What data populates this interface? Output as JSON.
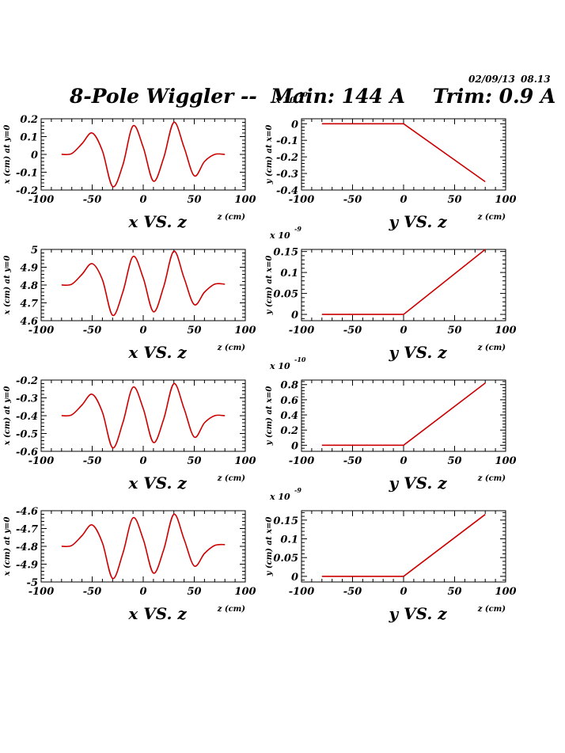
{
  "header": {
    "date": "02/09/13",
    "time": "08.13",
    "title": "8-Pole Wiggler --  Main: 144 A    Trim: 0.9 A",
    "overlap_label": "x 10",
    "overlap_exponent": "-10"
  },
  "chart_data": [
    {
      "type": "line",
      "title": "x VS. z",
      "xlabel": "z (cm)",
      "ylabel": "x (cm) at y=0",
      "xlim": [
        -100,
        100
      ],
      "ylim": [
        -0.2,
        0.2
      ],
      "x_ticks": [
        "-100",
        "-50",
        "0",
        "50",
        "100"
      ],
      "y_ticks": [
        "0.2",
        "0.1",
        "0",
        "-0.1",
        "-0.2"
      ],
      "color": "#cc0000",
      "series": [
        {
          "x": [
            -80,
            -70,
            -60,
            -50,
            -40,
            -30,
            -20,
            -10,
            0,
            10,
            20,
            30,
            40,
            50,
            60,
            70,
            80
          ],
          "y": [
            0,
            0.005,
            0.06,
            0.12,
            0.02,
            -0.18,
            -0.06,
            0.16,
            0.04,
            -0.15,
            -0.02,
            0.18,
            0.04,
            -0.12,
            -0.04,
            0,
            0
          ]
        }
      ]
    },
    {
      "type": "line",
      "title": "y VS. z",
      "xlabel": "z (cm)",
      "ylabel": "y (cm) at x=0",
      "exponent": "",
      "xlim": [
        -100,
        100
      ],
      "ylim": [
        -0.4,
        0.03
      ],
      "x_ticks": [
        "-100",
        "-50",
        "0",
        "50",
        "100"
      ],
      "y_ticks": [
        "0",
        "-0.1",
        "-0.2",
        "-0.3",
        "-0.4"
      ],
      "color": "#cc0000",
      "series": [
        {
          "x": [
            -80,
            0,
            80
          ],
          "y": [
            0,
            0,
            -0.35
          ]
        }
      ]
    },
    {
      "type": "line",
      "title": "x VS. z",
      "xlabel": "z (cm)",
      "ylabel": "x (cm) at y=0",
      "xlim": [
        -100,
        100
      ],
      "ylim": [
        4.6,
        5.0
      ],
      "x_ticks": [
        "-100",
        "-50",
        "0",
        "50",
        "100"
      ],
      "y_ticks": [
        "5",
        "4.9",
        "4.8",
        "4.7",
        "4.6"
      ],
      "color": "#cc0000",
      "series": [
        {
          "x": [
            -80,
            -70,
            -60,
            -50,
            -40,
            -30,
            -20,
            -10,
            0,
            10,
            20,
            30,
            40,
            50,
            60,
            70,
            80
          ],
          "y": [
            4.8,
            4.805,
            4.86,
            4.92,
            4.83,
            4.63,
            4.76,
            4.96,
            4.84,
            4.65,
            4.79,
            4.99,
            4.84,
            4.69,
            4.76,
            4.805,
            4.805
          ]
        }
      ]
    },
    {
      "type": "line",
      "title": "y VS. z",
      "xlabel": "z (cm)",
      "ylabel": "y (cm) at x=0",
      "exponent": "-9",
      "xlim": [
        -100,
        100
      ],
      "ylim": [
        -0.015,
        0.155
      ],
      "x_ticks": [
        "-100",
        "-50",
        "0",
        "50",
        "100"
      ],
      "y_ticks": [
        "0.15",
        "0.1",
        "0.05",
        "0"
      ],
      "color": "#cc0000",
      "series": [
        {
          "x": [
            -80,
            0,
            80
          ],
          "y": [
            0,
            0,
            0.155
          ]
        }
      ]
    },
    {
      "type": "line",
      "title": "x VS. z",
      "xlabel": "z (cm)",
      "ylabel": "x (cm) at y=0",
      "xlim": [
        -100,
        100
      ],
      "ylim": [
        -0.6,
        -0.2
      ],
      "x_ticks": [
        "-100",
        "-50",
        "0",
        "50",
        "100"
      ],
      "y_ticks": [
        "-0.2",
        "-0.3",
        "-0.4",
        "-0.5",
        "-0.6"
      ],
      "color": "#cc0000",
      "series": [
        {
          "x": [
            -80,
            -70,
            -60,
            -50,
            -40,
            -30,
            -20,
            -10,
            0,
            10,
            20,
            30,
            40,
            50,
            60,
            70,
            80
          ],
          "y": [
            -0.4,
            -0.395,
            -0.34,
            -0.28,
            -0.38,
            -0.58,
            -0.44,
            -0.24,
            -0.36,
            -0.55,
            -0.42,
            -0.22,
            -0.36,
            -0.52,
            -0.44,
            -0.4,
            -0.4
          ]
        }
      ]
    },
    {
      "type": "line",
      "title": "y VS. z",
      "xlabel": "z (cm)",
      "ylabel": "y (cm) at x=0",
      "exponent": "-10",
      "xlim": [
        -100,
        100
      ],
      "ylim": [
        -0.08,
        0.86
      ],
      "x_ticks": [
        "-100",
        "-50",
        "0",
        "50",
        "100"
      ],
      "y_ticks": [
        "0.8",
        "0.6",
        "0.4",
        "0.2",
        "0"
      ],
      "color": "#cc0000",
      "series": [
        {
          "x": [
            -80,
            0,
            80
          ],
          "y": [
            0,
            0,
            0.82
          ]
        }
      ]
    },
    {
      "type": "line",
      "title": "x VS. z",
      "xlabel": "z (cm)",
      "ylabel": "x (cm) at y=0",
      "xlim": [
        -100,
        100
      ],
      "ylim": [
        -5.0,
        -4.6
      ],
      "x_ticks": [
        "-100",
        "-50",
        "0",
        "50",
        "100"
      ],
      "y_ticks": [
        "-4.6",
        "-4.7",
        "-4.8",
        "-4.9",
        "-5"
      ],
      "color": "#cc0000",
      "series": [
        {
          "x": [
            -80,
            -70,
            -60,
            -50,
            -40,
            -30,
            -20,
            -10,
            0,
            10,
            20,
            30,
            40,
            50,
            60,
            70,
            80
          ],
          "y": [
            -4.8,
            -4.795,
            -4.74,
            -4.68,
            -4.78,
            -4.98,
            -4.84,
            -4.64,
            -4.76,
            -4.95,
            -4.82,
            -4.62,
            -4.76,
            -4.91,
            -4.84,
            -4.795,
            -4.79
          ]
        }
      ]
    },
    {
      "type": "line",
      "title": "y VS. z",
      "xlabel": "z (cm)",
      "ylabel": "y (cm) at x=0",
      "exponent": "-9",
      "xlim": [
        -100,
        100
      ],
      "ylim": [
        -0.015,
        0.175
      ],
      "x_ticks": [
        "-100",
        "-50",
        "0",
        "50",
        "100"
      ],
      "y_ticks": [
        "0.15",
        "0.1",
        "0.05",
        "0"
      ],
      "color": "#cc0000",
      "series": [
        {
          "x": [
            -80,
            0,
            80
          ],
          "y": [
            0,
            0,
            0.165
          ]
        }
      ]
    }
  ]
}
